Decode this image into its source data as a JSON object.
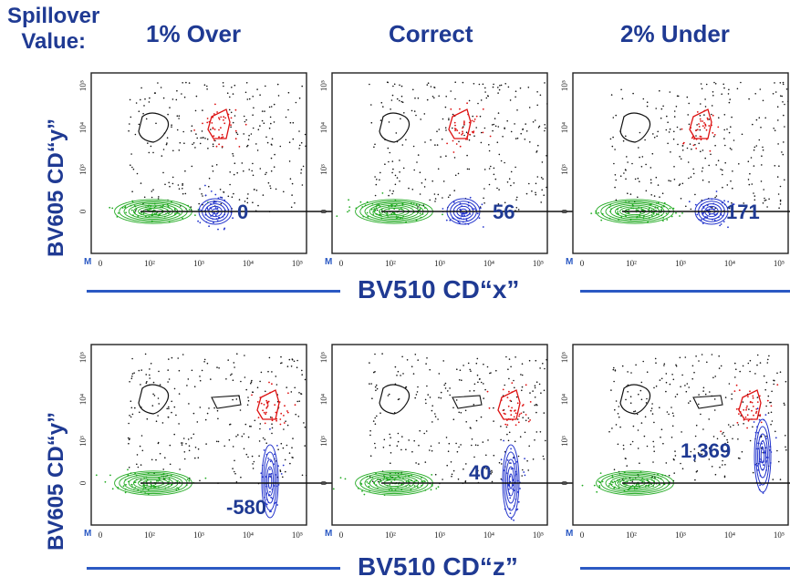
{
  "header": {
    "row_label_line1": "Spillover",
    "row_label_line2": "Value:",
    "columns": [
      "1% Over",
      "Correct",
      "2% Under"
    ]
  },
  "rows": [
    {
      "y_axis_title": "BV605 CD“y”",
      "x_axis_title": "BV510 CD“x”"
    },
    {
      "y_axis_title": "BV605 CD“y”",
      "x_axis_title": "BV510 CD“z”"
    }
  ],
  "colors": {
    "title_blue": "#1f3a93",
    "axis_line_blue": "#2b59c3",
    "population_green": "#22aa22",
    "population_blue": "#2233cc",
    "population_red": "#dd1111",
    "population_black": "#111111"
  },
  "chart_data": [
    {
      "type": "scatter",
      "panel": "row1-1% Over",
      "x_ticks": [
        "0",
        "10²",
        "10³",
        "10⁴",
        "10⁵"
      ],
      "y_ticks": [
        "0",
        "10³",
        "10⁴",
        "10⁵"
      ],
      "marker": "M",
      "annotation": "0"
    },
    {
      "type": "scatter",
      "panel": "row1-Correct",
      "x_ticks": [
        "0",
        "10²",
        "10³",
        "10⁴",
        "10⁵"
      ],
      "y_ticks": [
        "0",
        "10³",
        "10⁴",
        "10⁵"
      ],
      "marker": "M",
      "annotation": "56"
    },
    {
      "type": "scatter",
      "panel": "row1-2% Under",
      "x_ticks": [
        "0",
        "10²",
        "10³",
        "10⁴",
        "10⁵"
      ],
      "y_ticks": [
        "0",
        "10³",
        "10⁴",
        "10⁵"
      ],
      "marker": "M",
      "annotation": "171"
    },
    {
      "type": "scatter",
      "panel": "row2-1% Over",
      "x_ticks": [
        "0",
        "10²",
        "10³",
        "10⁴",
        "10⁵"
      ],
      "y_ticks": [
        "0",
        "10³",
        "10⁴",
        "10⁵"
      ],
      "marker": "M",
      "annotation": "-580"
    },
    {
      "type": "scatter",
      "panel": "row2-Correct",
      "x_ticks": [
        "0",
        "10²",
        "10³",
        "10⁴",
        "10⁵"
      ],
      "y_ticks": [
        "0",
        "10³",
        "10⁴",
        "10⁵"
      ],
      "marker": "M",
      "annotation": "40"
    },
    {
      "type": "scatter",
      "panel": "row2-2% Under",
      "x_ticks": [
        "0",
        "10²",
        "10³",
        "10⁴",
        "10⁵"
      ],
      "y_ticks": [
        "0",
        "10³",
        "10⁴",
        "10⁵"
      ],
      "marker": "M",
      "annotation": "1,369"
    }
  ]
}
